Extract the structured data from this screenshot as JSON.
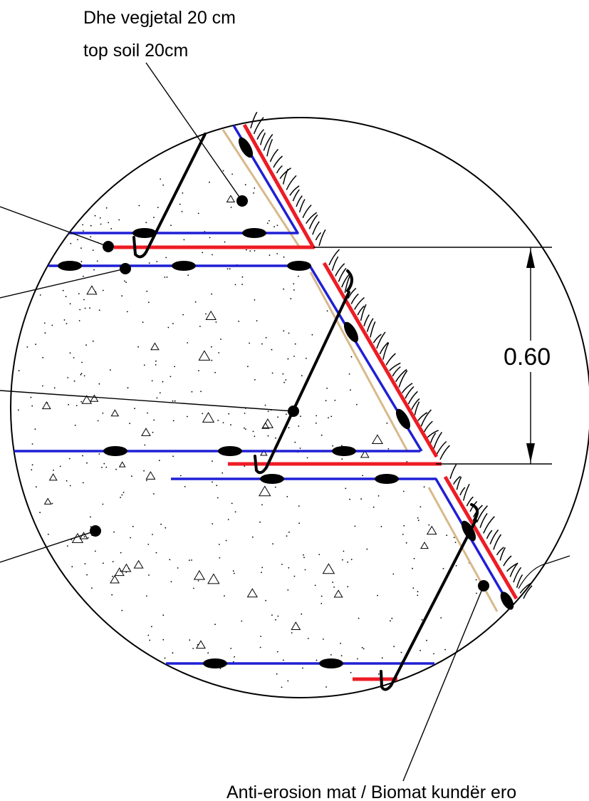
{
  "labels": {
    "top_line1": "Dhe vegjetal  20 cm",
    "top_line2": "top soil 20cm",
    "dimension": "0.60",
    "bottom": "Anti-erosion mat / Biomat kundër ero"
  },
  "colors": {
    "geogrid_red": "#ee1c24",
    "geogrid_blue": "#1f1fd6",
    "facing_tan": "#d8b98a",
    "ink": "#000000"
  },
  "icons": [
    "triangle-aggregate-icon",
    "stipple-dot-icon",
    "grass-tuft-icon"
  ]
}
